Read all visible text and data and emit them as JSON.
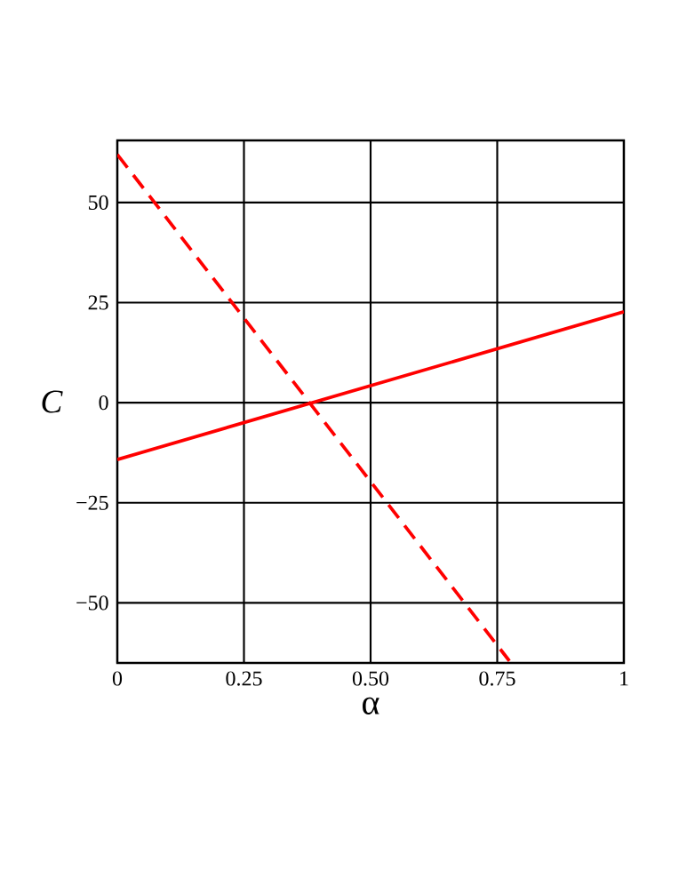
{
  "chart_data": {
    "type": "line",
    "xlabel": "α",
    "ylabel": "C",
    "xlim": [
      0,
      1
    ],
    "ylim": [
      -65,
      65.5
    ],
    "xticks": [
      0,
      0.25,
      {
        "value": 0.5,
        "label": "0.50"
      },
      0.75,
      1
    ],
    "yticks": [
      {
        "value": -50,
        "label": "−50"
      },
      {
        "value": -25,
        "label": "−25"
      },
      0,
      25,
      50
    ],
    "grid": true,
    "marker": "none",
    "series": [
      {
        "color": "#ff0000",
        "line_style": "solid",
        "x": [
          0,
          1
        ],
        "values": [
          -14.2,
          22.7
        ]
      },
      {
        "color": "#ff0000",
        "line_style": "dashed",
        "x": [
          0,
          0.774
        ],
        "values": [
          62,
          -64.5
        ]
      }
    ]
  }
}
